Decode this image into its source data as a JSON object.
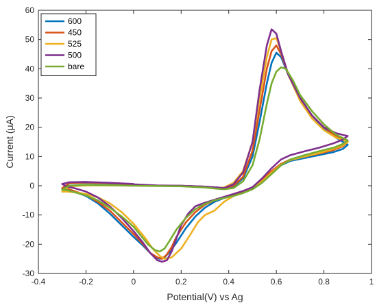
{
  "chart_data": {
    "type": "line",
    "title": "",
    "xlabel": "Potential(V) vs Ag",
    "ylabel": "Current (μA)",
    "xlim": [
      -0.4,
      1.0
    ],
    "ylim": [
      -30,
      60
    ],
    "xticks": [
      -0.4,
      -0.2,
      0,
      0.2,
      0.4,
      0.6,
      0.8,
      1
    ],
    "xtick_labels": [
      "-0.4",
      "-0.2",
      "0",
      "0.2",
      "0.4",
      "0.6",
      "0.8",
      "1"
    ],
    "yticks": [
      -30,
      -20,
      -10,
      0,
      10,
      20,
      30,
      40,
      50,
      60
    ],
    "ytick_labels": [
      "-30",
      "-20",
      "-10",
      "0",
      "10",
      "20",
      "30",
      "40",
      "50",
      "60"
    ],
    "grid": false,
    "legend_position": "top-left",
    "series": [
      {
        "name": "600",
        "color": "#0072BD",
        "x": [
          0.0,
          0.1,
          0.2,
          0.3,
          0.35,
          0.38,
          0.42,
          0.46,
          0.5,
          0.53,
          0.56,
          0.58,
          0.6,
          0.62,
          0.65,
          0.7,
          0.75,
          0.8,
          0.85,
          0.9,
          0.88,
          0.84,
          0.78,
          0.72,
          0.66,
          0.62,
          0.58,
          0.54,
          0.5,
          0.46,
          0.42,
          0.38,
          0.34,
          0.3,
          0.26,
          0.22,
          0.18,
          0.15,
          0.13,
          0.11,
          0.09,
          0.07,
          0.04,
          0.0,
          -0.05,
          -0.1,
          -0.15,
          -0.2,
          -0.25,
          -0.28,
          -0.3,
          -0.27,
          -0.2,
          -0.1,
          0.0
        ],
        "y": [
          0.2,
          0.0,
          0.0,
          -0.3,
          -0.6,
          -0.8,
          -0.2,
          2.5,
          10.0,
          22.0,
          35.0,
          42.0,
          45.5,
          44.0,
          38.0,
          30.0,
          24.0,
          19.5,
          16.5,
          14.0,
          12.6,
          11.5,
          10.5,
          9.5,
          8.5,
          7.0,
          4.5,
          1.5,
          -1.0,
          -2.3,
          -3.2,
          -4.2,
          -5.5,
          -7.5,
          -10.5,
          -14.5,
          -19.5,
          -22.8,
          -24.5,
          -25.0,
          -24.5,
          -23.0,
          -20.5,
          -17.5,
          -13.5,
          -9.5,
          -6.0,
          -3.5,
          -2.0,
          -1.2,
          -1.0,
          0.8,
          1.0,
          0.8,
          0.5
        ]
      },
      {
        "name": "450",
        "color": "#D95319",
        "x": [
          0.0,
          0.1,
          0.2,
          0.3,
          0.35,
          0.38,
          0.42,
          0.46,
          0.5,
          0.53,
          0.56,
          0.58,
          0.6,
          0.62,
          0.65,
          0.7,
          0.75,
          0.8,
          0.85,
          0.9,
          0.88,
          0.84,
          0.78,
          0.72,
          0.66,
          0.62,
          0.58,
          0.54,
          0.5,
          0.46,
          0.42,
          0.38,
          0.34,
          0.3,
          0.26,
          0.22,
          0.18,
          0.16,
          0.14,
          0.12,
          0.1,
          0.07,
          0.04,
          0.0,
          -0.05,
          -0.1,
          -0.15,
          -0.2,
          -0.25,
          -0.28,
          -0.3,
          -0.27,
          -0.2,
          -0.1,
          0.0
        ],
        "y": [
          0.2,
          0.0,
          0.0,
          -0.3,
          -0.6,
          -0.8,
          0.0,
          3.0,
          12.0,
          26.0,
          40.0,
          46.0,
          48.0,
          45.0,
          38.0,
          30.0,
          24.0,
          20.0,
          17.0,
          15.0,
          13.5,
          12.2,
          11.0,
          10.0,
          9.0,
          7.5,
          5.0,
          2.0,
          -0.5,
          -2.0,
          -3.0,
          -4.0,
          -5.0,
          -6.5,
          -9.0,
          -12.5,
          -17.5,
          -21.0,
          -23.5,
          -25.0,
          -24.5,
          -23.0,
          -20.0,
          -16.5,
          -12.5,
          -8.5,
          -5.5,
          -3.2,
          -1.8,
          -1.0,
          -0.8,
          0.9,
          1.1,
          0.9,
          0.5
        ]
      },
      {
        "name": "525",
        "color": "#EDB120",
        "x": [
          0.0,
          0.1,
          0.2,
          0.3,
          0.35,
          0.38,
          0.42,
          0.46,
          0.5,
          0.53,
          0.56,
          0.58,
          0.6,
          0.62,
          0.65,
          0.7,
          0.75,
          0.8,
          0.85,
          0.9,
          0.88,
          0.84,
          0.78,
          0.72,
          0.66,
          0.62,
          0.58,
          0.54,
          0.5,
          0.46,
          0.42,
          0.38,
          0.34,
          0.3,
          0.27,
          0.24,
          0.2,
          0.16,
          0.13,
          0.11,
          0.08,
          0.05,
          0.0,
          -0.05,
          -0.1,
          -0.15,
          -0.2,
          -0.25,
          -0.28,
          -0.3,
          -0.27,
          -0.2,
          -0.1,
          0.0
        ],
        "y": [
          0.1,
          0.0,
          -0.1,
          -0.4,
          -0.7,
          -0.6,
          1.0,
          5.0,
          15.0,
          30.0,
          44.0,
          50.0,
          50.5,
          46.0,
          38.0,
          29.0,
          23.0,
          19.0,
          16.5,
          15.0,
          13.8,
          12.6,
          11.2,
          10.0,
          8.8,
          7.2,
          4.5,
          1.5,
          -1.0,
          -2.5,
          -3.5,
          -5.5,
          -8.5,
          -10.0,
          -12.5,
          -16.5,
          -21.5,
          -24.5,
          -25.0,
          -24.0,
          -21.5,
          -18.0,
          -13.0,
          -9.0,
          -6.0,
          -4.0,
          -2.8,
          -2.2,
          -2.0,
          -2.0,
          -0.2,
          0.1,
          0.1,
          0.0
        ]
      },
      {
        "name": "500",
        "color": "#7E2F8E",
        "x": [
          0.0,
          0.1,
          0.2,
          0.3,
          0.35,
          0.38,
          0.42,
          0.46,
          0.5,
          0.53,
          0.56,
          0.58,
          0.6,
          0.62,
          0.65,
          0.7,
          0.75,
          0.8,
          0.85,
          0.9,
          0.88,
          0.84,
          0.78,
          0.72,
          0.66,
          0.62,
          0.58,
          0.54,
          0.5,
          0.46,
          0.42,
          0.38,
          0.34,
          0.3,
          0.26,
          0.23,
          0.2,
          0.18,
          0.16,
          0.14,
          0.12,
          0.1,
          0.07,
          0.04,
          0.0,
          -0.05,
          -0.1,
          -0.15,
          -0.2,
          -0.25,
          -0.28,
          -0.3,
          -0.27,
          -0.2,
          -0.1,
          0.0
        ],
        "y": [
          0.5,
          0.1,
          0.0,
          -0.3,
          -0.6,
          -0.8,
          0.5,
          4.5,
          15.0,
          33.0,
          48.0,
          53.5,
          52.0,
          46.0,
          38.0,
          30.0,
          24.0,
          20.0,
          18.0,
          17.0,
          15.8,
          14.5,
          13.0,
          11.8,
          10.5,
          9.0,
          6.0,
          2.5,
          -0.5,
          -1.8,
          -2.8,
          -3.8,
          -4.8,
          -5.8,
          -7.0,
          -9.5,
          -13.5,
          -18.0,
          -22.5,
          -25.5,
          -26.0,
          -25.5,
          -23.0,
          -19.5,
          -15.5,
          -11.0,
          -7.0,
          -4.0,
          -2.0,
          -0.8,
          -0.3,
          0.6,
          1.2,
          1.3,
          1.0,
          0.6
        ]
      },
      {
        "name": "bare",
        "color": "#77AC30",
        "x": [
          0.0,
          0.1,
          0.2,
          0.3,
          0.35,
          0.38,
          0.42,
          0.46,
          0.5,
          0.53,
          0.56,
          0.58,
          0.6,
          0.62,
          0.64,
          0.67,
          0.7,
          0.75,
          0.8,
          0.85,
          0.9,
          0.88,
          0.84,
          0.78,
          0.72,
          0.66,
          0.62,
          0.58,
          0.54,
          0.5,
          0.46,
          0.42,
          0.38,
          0.34,
          0.3,
          0.26,
          0.22,
          0.18,
          0.15,
          0.13,
          0.11,
          0.09,
          0.06,
          0.03,
          0.0,
          -0.05,
          -0.1,
          -0.15,
          -0.2,
          -0.25,
          -0.28,
          -0.3,
          -0.27,
          -0.2,
          -0.1,
          0.0
        ],
        "y": [
          0.0,
          -0.1,
          -0.2,
          -0.6,
          -1.0,
          -1.2,
          -0.8,
          1.5,
          7.0,
          16.0,
          28.0,
          35.0,
          39.0,
          40.5,
          40.0,
          36.0,
          31.0,
          25.5,
          21.0,
          17.5,
          15.5,
          14.3,
          13.0,
          11.8,
          10.5,
          9.0,
          7.0,
          4.0,
          1.0,
          -1.2,
          -2.5,
          -3.5,
          -4.2,
          -5.0,
          -6.2,
          -8.0,
          -11.0,
          -15.0,
          -19.0,
          -21.5,
          -22.5,
          -22.0,
          -20.0,
          -17.0,
          -14.0,
          -10.5,
          -7.5,
          -5.0,
          -3.3,
          -2.2,
          -1.5,
          -1.3,
          0.0,
          0.3,
          0.2,
          0.0
        ]
      }
    ]
  }
}
